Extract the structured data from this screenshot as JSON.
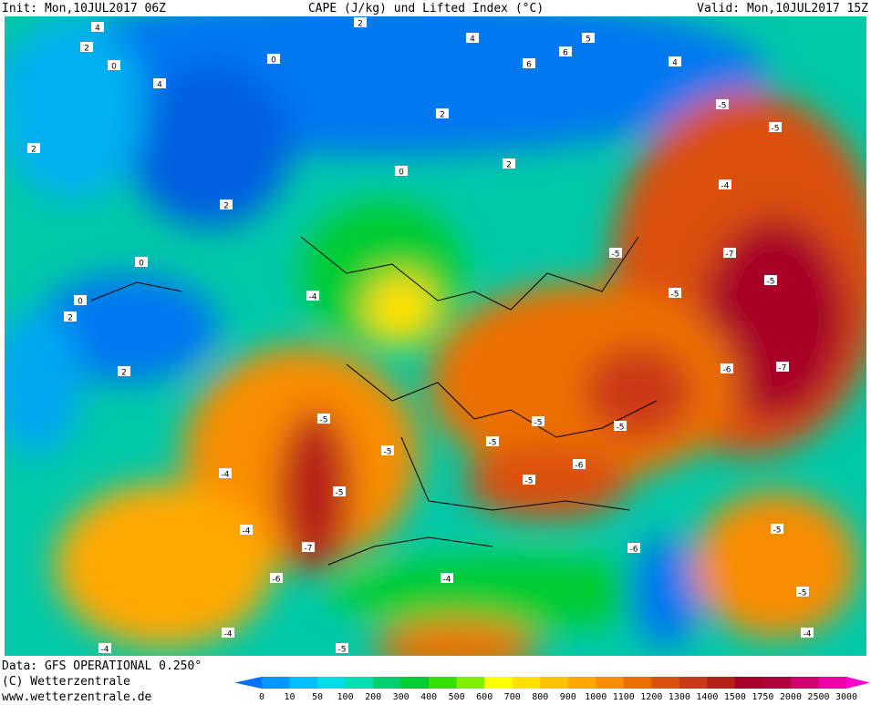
{
  "header": {
    "init": "Init: Mon,10JUL2017 06Z",
    "title": "CAPE (J/kg) und Lifted Index (°C)",
    "valid": "Valid: Mon,10JUL2017 15Z"
  },
  "footer": {
    "data": "Data: GFS OPERATIONAL 0.250°",
    "copyright": "(C) Wetterzentrale",
    "url": "www.wetterzentrale.de"
  },
  "legend": {
    "labels": [
      "0",
      "10",
      "50",
      "100",
      "200",
      "300",
      "400",
      "500",
      "600",
      "700",
      "800",
      "900",
      "1000",
      "1100",
      "1200",
      "1300",
      "1400",
      "1500",
      "1750",
      "2000",
      "2500",
      "3000"
    ],
    "colors": [
      "#0070ff",
      "#0099ff",
      "#00c0ff",
      "#00dde8",
      "#00e0b0",
      "#00d070",
      "#00cc33",
      "#33e000",
      "#80f000",
      "#ffff00",
      "#ffe000",
      "#ffc400",
      "#ffa800",
      "#f88c00",
      "#ec7000",
      "#dc5010",
      "#cc3818",
      "#b82018",
      "#a80028",
      "#b0003c",
      "#d00070",
      "#f000a8",
      "#ff00d0"
    ]
  },
  "map": {
    "contour_labels": [
      4,
      2,
      0,
      4,
      2,
      2,
      2,
      0,
      4,
      5,
      6,
      6,
      4,
      2,
      2,
      0,
      0,
      0,
      2,
      2,
      -4,
      -5,
      -5,
      -4,
      -5,
      -4,
      -7,
      -6,
      -5,
      -5,
      -5,
      -6,
      -5,
      -5,
      -7,
      -5,
      -7,
      -6,
      -5,
      -4,
      -5,
      -5,
      -5,
      -4,
      -6,
      -4,
      -4,
      -5,
      -4,
      -5
    ]
  }
}
